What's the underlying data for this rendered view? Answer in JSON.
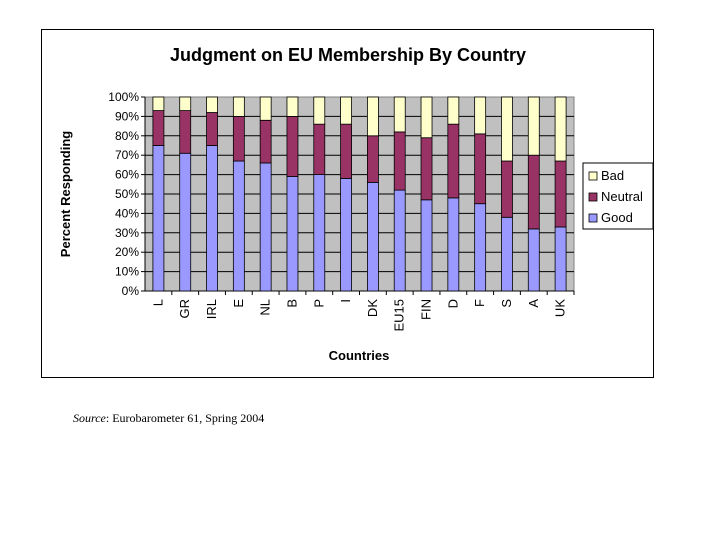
{
  "chart_data": {
    "type": "bar",
    "stacked": true,
    "title": "Judgment on EU Membership By Country",
    "xlabel": "Countries",
    "ylabel": "Percent Responding",
    "ylim": [
      0,
      100
    ],
    "y_ticks": [
      "0%",
      "10%",
      "20%",
      "30%",
      "40%",
      "50%",
      "60%",
      "70%",
      "80%",
      "90%",
      "100%"
    ],
    "grid": true,
    "legend_position": "right",
    "categories": [
      "L",
      "GR",
      "IRL",
      "E",
      "NL",
      "B",
      "P",
      "I",
      "DK",
      "EU15",
      "FIN",
      "D",
      "F",
      "S",
      "A",
      "UK"
    ],
    "series": [
      {
        "name": "Good",
        "color": "#9999ff",
        "values": [
          75,
          71,
          75,
          67,
          66,
          59,
          60,
          58,
          56,
          52,
          47,
          48,
          45,
          38,
          32,
          33
        ]
      },
      {
        "name": "Neutral",
        "color": "#993366",
        "values": [
          18,
          22,
          17,
          23,
          22,
          31,
          26,
          28,
          24,
          30,
          32,
          38,
          36,
          29,
          38,
          34
        ]
      },
      {
        "name": "Bad",
        "color": "#ffffcc",
        "values": [
          7,
          7,
          8,
          10,
          12,
          10,
          14,
          14,
          20,
          18,
          21,
          14,
          19,
          33,
          30,
          33
        ]
      }
    ],
    "legend_order": [
      "Bad",
      "Neutral",
      "Good"
    ],
    "plot_background": "#c0c0c0"
  },
  "source": {
    "label": "Source",
    "text": ": Eurobarometer 61, Spring 2004"
  }
}
